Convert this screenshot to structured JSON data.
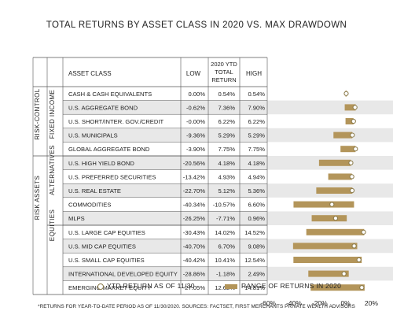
{
  "title": "TOTAL RETURNS BY ASSET CLASS IN 2020 VS. MAX DRAWDOWN",
  "headers": {
    "asset_class": "ASSET CLASS",
    "low": "LOW",
    "ytd_line1": "2020 YTD",
    "ytd_line2": "TOTAL",
    "ytd_line3": "RETURN",
    "high": "HIGH"
  },
  "groups": {
    "risk_control": "RISK-CONTROL",
    "risk_assets": "RISK ASSETS",
    "fixed_income": "FIXED INCOME",
    "alternatives": "ALTERNATIVES",
    "equities": "EQUITIES"
  },
  "legend": {
    "ytd": "YTD RETURN AS OF 11/30",
    "range": "RANGE OF RETURNS IN 2020"
  },
  "footnote": "*RETURNS FOR YEAR-TO-DATE PERIOD AS OF 11/30/2020. SOURCES: FACTSET, FIRST MERCHANTS PRIVATE WEALTH ADVISORS",
  "colors": {
    "bar": "#b3955a",
    "ytd_marker_stroke": "#8a7a4a",
    "grid_line": "#555555",
    "row_stripe": "#e8e8e8"
  },
  "chart_data": {
    "type": "range-bar",
    "x_ticks": [
      "-60%",
      "-40%",
      "-20%",
      "0%",
      "20%"
    ],
    "xlim": [
      -60,
      20
    ],
    "columns": [
      "ASSET CLASS",
      "LOW",
      "2020 YTD TOTAL RETURN",
      "HIGH"
    ],
    "rows": [
      {
        "name": "CASH & CASH EQUIVALENTS",
        "low_text": "0.00%",
        "ytd_text": "0.54%",
        "high_text": "0.54%",
        "low": 0.0,
        "ytd": 0.54,
        "high": 0.54
      },
      {
        "name": "U.S. AGGREGATE BOND",
        "low_text": "-0.62%",
        "ytd_text": "7.36%",
        "high_text": "7.90%",
        "low": -0.62,
        "ytd": 7.36,
        "high": 7.9
      },
      {
        "name": "U.S. SHORT/INTER. GOV./CREDIT",
        "low_text": "-0.00%",
        "ytd_text": "6.22%",
        "high_text": "6.22%",
        "low": 0.0,
        "ytd": 6.22,
        "high": 6.22
      },
      {
        "name": "U.S. MUNICIPALS",
        "low_text": "-9.36%",
        "ytd_text": "5.29%",
        "high_text": "5.29%",
        "low": -9.36,
        "ytd": 5.29,
        "high": 5.29
      },
      {
        "name": "GLOBAL AGGREGATE BOND",
        "low_text": "-3.90%",
        "ytd_text": "7.75%",
        "high_text": "7.75%",
        "low": -3.9,
        "ytd": 7.75,
        "high": 7.75
      },
      {
        "name": "U.S. HIGH YIELD BOND",
        "low_text": "-20.56%",
        "ytd_text": "4.18%",
        "high_text": "4.18%",
        "low": -20.56,
        "ytd": 4.18,
        "high": 4.18
      },
      {
        "name": "U.S. PREFERRED SECURITIES",
        "low_text": "-13.42%",
        "ytd_text": "4.93%",
        "high_text": "4.94%",
        "low": -13.42,
        "ytd": 4.93,
        "high": 4.94
      },
      {
        "name": "U.S. REAL ESTATE",
        "low_text": "-22.70%",
        "ytd_text": "5.12%",
        "high_text": "5.36%",
        "low": -22.7,
        "ytd": 5.12,
        "high": 5.36
      },
      {
        "name": "COMMODITIES",
        "low_text": "-40.34%",
        "ytd_text": "-10.57%",
        "high_text": "6.60%",
        "low": -40.34,
        "ytd": -10.57,
        "high": 6.6
      },
      {
        "name": "MLPS",
        "low_text": "-26.25%",
        "ytd_text": "-7.71%",
        "high_text": "0.96%",
        "low": -26.25,
        "ytd": -7.71,
        "high": 0.96
      },
      {
        "name": "U.S. LARGE CAP EQUITIES",
        "low_text": "-30.43%",
        "ytd_text": "14.02%",
        "high_text": "14.52%",
        "low": -30.43,
        "ytd": 14.02,
        "high": 14.52
      },
      {
        "name": "U.S. MID CAP EQUITIES",
        "low_text": "-40.70%",
        "ytd_text": "6.70%",
        "high_text": "9.08%",
        "low": -40.7,
        "ytd": 6.7,
        "high": 9.08
      },
      {
        "name": "U.S. SMALL CAP EQUITIES",
        "low_text": "-40.42%",
        "ytd_text": "10.41%",
        "high_text": "12.54%",
        "low": -40.42,
        "ytd": 10.41,
        "high": 12.54
      },
      {
        "name": "INTERNATIONAL DEVELOPED EQUITY",
        "low_text": "-28.86%",
        "ytd_text": "-1.18%",
        "high_text": "2.49%",
        "low": -28.86,
        "ytd": -1.18,
        "high": 2.49
      },
      {
        "name": "EMERGING MARKET EQUITY",
        "low_text": "-27.05%",
        "ytd_text": "12.62%",
        "high_text": "14.81%",
        "low": -27.05,
        "ytd": 12.62,
        "high": 14.81
      }
    ]
  }
}
